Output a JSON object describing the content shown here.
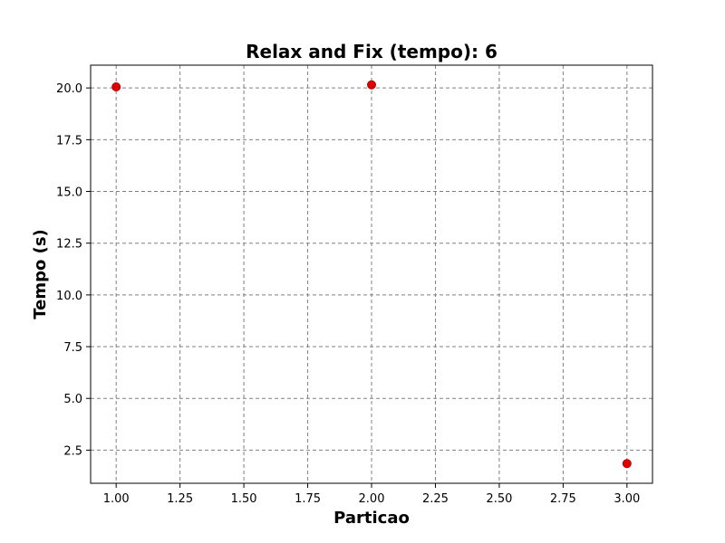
{
  "chart_data": {
    "type": "scatter",
    "title": "Relax and Fix (tempo): 6",
    "xlabel": "Particao",
    "ylabel": "Tempo (s)",
    "x": [
      1.0,
      2.0,
      3.0
    ],
    "y": [
      20.05,
      20.15,
      1.85
    ],
    "xlim": [
      0.9,
      3.1
    ],
    "ylim": [
      0.9,
      21.1
    ],
    "xticks": [
      1.0,
      1.25,
      1.5,
      1.75,
      2.0,
      2.25,
      2.5,
      2.75,
      3.0
    ],
    "yticks": [
      2.5,
      5.0,
      7.5,
      10.0,
      12.5,
      15.0,
      17.5,
      20.0
    ],
    "xtick_labels": [
      "1.00",
      "1.25",
      "1.50",
      "1.75",
      "2.00",
      "2.25",
      "2.50",
      "2.75",
      "3.00"
    ],
    "ytick_labels": [
      "2.5",
      "5.0",
      "7.5",
      "10.0",
      "12.5",
      "15.0",
      "17.5",
      "20.0"
    ],
    "grid": true,
    "marker_color": "#e00000",
    "marker_edge_color": "#b00000"
  }
}
